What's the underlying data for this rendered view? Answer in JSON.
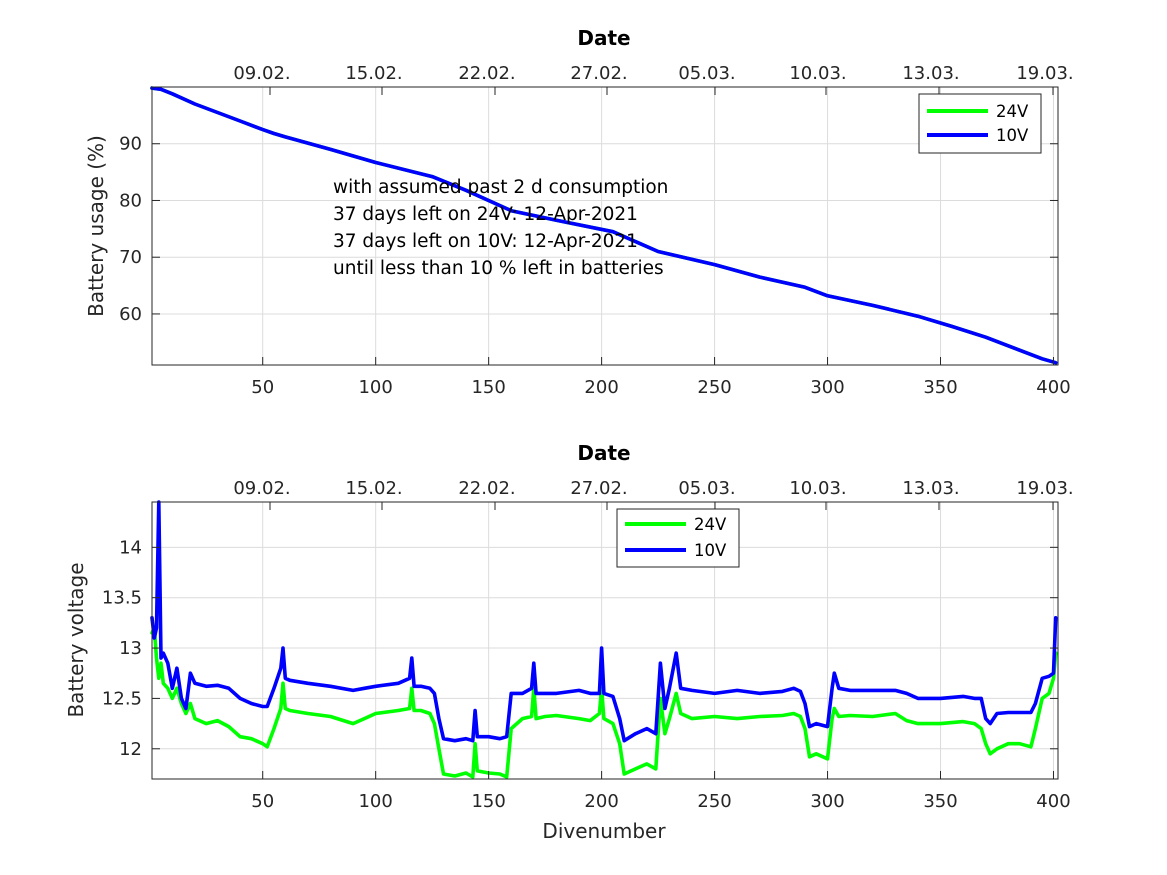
{
  "chart_data": [
    {
      "type": "line",
      "title": "Date",
      "xlabel": "",
      "ylabel": "Battery usage (%)",
      "xlim": [
        1,
        402
      ],
      "ylim": [
        51,
        100
      ],
      "xticks": [
        50,
        100,
        150,
        200,
        250,
        300,
        350,
        400
      ],
      "yticks": [
        60,
        70,
        80,
        90
      ],
      "top_tick_labels": [
        "09.02.",
        "15.02.",
        "22.02.",
        "27.02.",
        "05.03.",
        "10.03.",
        "13.03.",
        "19.03."
      ],
      "grid": true,
      "legend_position": "top-right",
      "annotation": [
        "with assumed past 2 d consumption",
        "37 days left on 24V: 12-Apr-2021",
        "37 days left on 10V: 12-Apr-2021",
        "until less than 10 % left in batteries"
      ],
      "series": [
        {
          "name": "24V",
          "color": "#00ff00",
          "x": [
            1,
            5,
            10,
            20,
            30,
            40,
            50,
            55,
            60,
            80,
            100,
            125,
            140,
            160,
            180,
            205,
            225,
            250,
            270,
            290,
            300,
            320,
            340,
            355,
            370,
            385,
            395,
            401
          ],
          "y": [
            99.8,
            99.6,
            98.8,
            97.0,
            95.5,
            94.0,
            92.5,
            91.8,
            91.2,
            89.0,
            86.7,
            84.2,
            81.8,
            78.2,
            76.5,
            74.5,
            71.0,
            68.7,
            66.5,
            64.7,
            63.2,
            61.5,
            59.6,
            57.8,
            55.9,
            53.6,
            52.1,
            51.4
          ]
        },
        {
          "name": "10V",
          "color": "#0000ff",
          "x": [
            1,
            5,
            10,
            20,
            30,
            40,
            50,
            55,
            60,
            80,
            100,
            125,
            140,
            160,
            180,
            205,
            225,
            250,
            270,
            290,
            300,
            320,
            340,
            355,
            370,
            385,
            395,
            401
          ],
          "y": [
            99.8,
            99.6,
            98.8,
            97.0,
            95.5,
            94.0,
            92.5,
            91.8,
            91.2,
            89.0,
            86.7,
            84.2,
            81.8,
            78.2,
            76.5,
            74.5,
            71.0,
            68.7,
            66.5,
            64.7,
            63.2,
            61.5,
            59.6,
            57.8,
            55.9,
            53.6,
            52.1,
            51.4
          ]
        }
      ]
    },
    {
      "type": "line",
      "title": "Date",
      "xlabel": "Divenumber",
      "ylabel": "Battery voltage",
      "xlim": [
        1,
        402
      ],
      "ylim": [
        11.7,
        14.45
      ],
      "xticks": [
        50,
        100,
        150,
        200,
        250,
        300,
        350,
        400
      ],
      "yticks": [
        12,
        12.5,
        13,
        13.5,
        14
      ],
      "top_tick_labels": [
        "09.02.",
        "15.02.",
        "22.02.",
        "27.02.",
        "05.03.",
        "10.03.",
        "13.03.",
        "19.03."
      ],
      "grid": true,
      "legend_position": "top-center",
      "series": [
        {
          "name": "24V",
          "color": "#00ff00",
          "x": [
            1,
            2,
            3,
            4,
            5,
            6,
            8,
            10,
            12,
            14,
            16,
            18,
            20,
            25,
            30,
            35,
            40,
            45,
            50,
            52,
            55,
            58,
            59,
            60,
            62,
            70,
            80,
            90,
            95,
            100,
            110,
            115,
            116,
            117,
            120,
            124,
            126,
            128,
            130,
            135,
            140,
            143,
            144,
            145,
            150,
            155,
            158,
            160,
            165,
            169,
            170,
            171,
            175,
            180,
            190,
            195,
            199,
            200,
            201,
            205,
            208,
            210,
            215,
            220,
            224,
            226,
            228,
            230,
            233,
            235,
            240,
            250,
            260,
            270,
            280,
            285,
            288,
            290,
            292,
            295,
            300,
            302,
            303,
            305,
            310,
            320,
            330,
            335,
            340,
            350,
            360,
            365,
            368,
            370,
            372,
            375,
            380,
            385,
            390,
            392,
            395,
            398,
            400,
            401
          ],
          "y": [
            13.15,
            13.2,
            12.9,
            12.7,
            12.85,
            12.65,
            12.6,
            12.5,
            12.6,
            12.45,
            12.35,
            12.45,
            12.3,
            12.25,
            12.28,
            12.22,
            12.12,
            12.1,
            12.05,
            12.02,
            12.2,
            12.4,
            12.65,
            12.4,
            12.38,
            12.35,
            12.32,
            12.25,
            12.3,
            12.35,
            12.38,
            12.4,
            12.6,
            12.38,
            12.38,
            12.35,
            12.25,
            12.0,
            11.75,
            11.73,
            11.76,
            11.72,
            12.05,
            11.78,
            11.76,
            11.75,
            11.72,
            12.2,
            12.3,
            12.32,
            12.6,
            12.3,
            12.32,
            12.33,
            12.3,
            12.28,
            12.35,
            12.6,
            12.3,
            12.25,
            12.05,
            11.75,
            11.8,
            11.85,
            11.8,
            12.5,
            12.15,
            12.3,
            12.55,
            12.35,
            12.3,
            12.32,
            12.3,
            12.32,
            12.33,
            12.35,
            12.32,
            12.2,
            11.92,
            11.95,
            11.9,
            12.3,
            12.4,
            12.32,
            12.33,
            12.32,
            12.35,
            12.28,
            12.25,
            12.25,
            12.27,
            12.25,
            12.2,
            12.05,
            11.95,
            12.0,
            12.05,
            12.05,
            12.02,
            12.2,
            12.5,
            12.55,
            12.7,
            12.95
          ]
        },
        {
          "name": "10V",
          "color": "#0000ff",
          "x": [
            1,
            2,
            3,
            4,
            5,
            6,
            8,
            10,
            12,
            14,
            16,
            18,
            20,
            25,
            30,
            35,
            40,
            45,
            50,
            52,
            55,
            58,
            59,
            60,
            62,
            70,
            80,
            90,
            95,
            100,
            110,
            115,
            116,
            117,
            120,
            124,
            126,
            128,
            130,
            135,
            140,
            143,
            144,
            145,
            150,
            155,
            158,
            160,
            165,
            169,
            170,
            171,
            175,
            180,
            190,
            195,
            199,
            200,
            201,
            205,
            208,
            210,
            215,
            220,
            224,
            226,
            228,
            230,
            233,
            235,
            240,
            250,
            260,
            270,
            280,
            285,
            288,
            290,
            292,
            295,
            300,
            302,
            303,
            305,
            310,
            320,
            330,
            335,
            340,
            350,
            360,
            365,
            368,
            370,
            372,
            375,
            380,
            385,
            390,
            392,
            395,
            398,
            400,
            401
          ],
          "y": [
            13.3,
            13.1,
            13.2,
            14.45,
            12.9,
            12.95,
            12.85,
            12.6,
            12.8,
            12.5,
            12.4,
            12.75,
            12.65,
            12.62,
            12.63,
            12.6,
            12.5,
            12.45,
            12.42,
            12.42,
            12.6,
            12.8,
            13.0,
            12.7,
            12.68,
            12.65,
            12.62,
            12.58,
            12.6,
            12.62,
            12.65,
            12.7,
            12.9,
            12.62,
            12.62,
            12.6,
            12.55,
            12.3,
            12.1,
            12.08,
            12.1,
            12.08,
            12.38,
            12.12,
            12.12,
            12.1,
            12.12,
            12.55,
            12.55,
            12.6,
            12.85,
            12.55,
            12.55,
            12.55,
            12.58,
            12.55,
            12.55,
            13.0,
            12.55,
            12.52,
            12.3,
            12.08,
            12.15,
            12.2,
            12.15,
            12.85,
            12.4,
            12.6,
            12.95,
            12.6,
            12.58,
            12.55,
            12.58,
            12.55,
            12.57,
            12.6,
            12.57,
            12.45,
            12.22,
            12.25,
            12.22,
            12.6,
            12.75,
            12.6,
            12.58,
            12.58,
            12.58,
            12.55,
            12.5,
            12.5,
            12.52,
            12.5,
            12.5,
            12.3,
            12.25,
            12.35,
            12.36,
            12.36,
            12.36,
            12.45,
            12.7,
            12.72,
            12.75,
            13.3
          ]
        }
      ]
    }
  ]
}
